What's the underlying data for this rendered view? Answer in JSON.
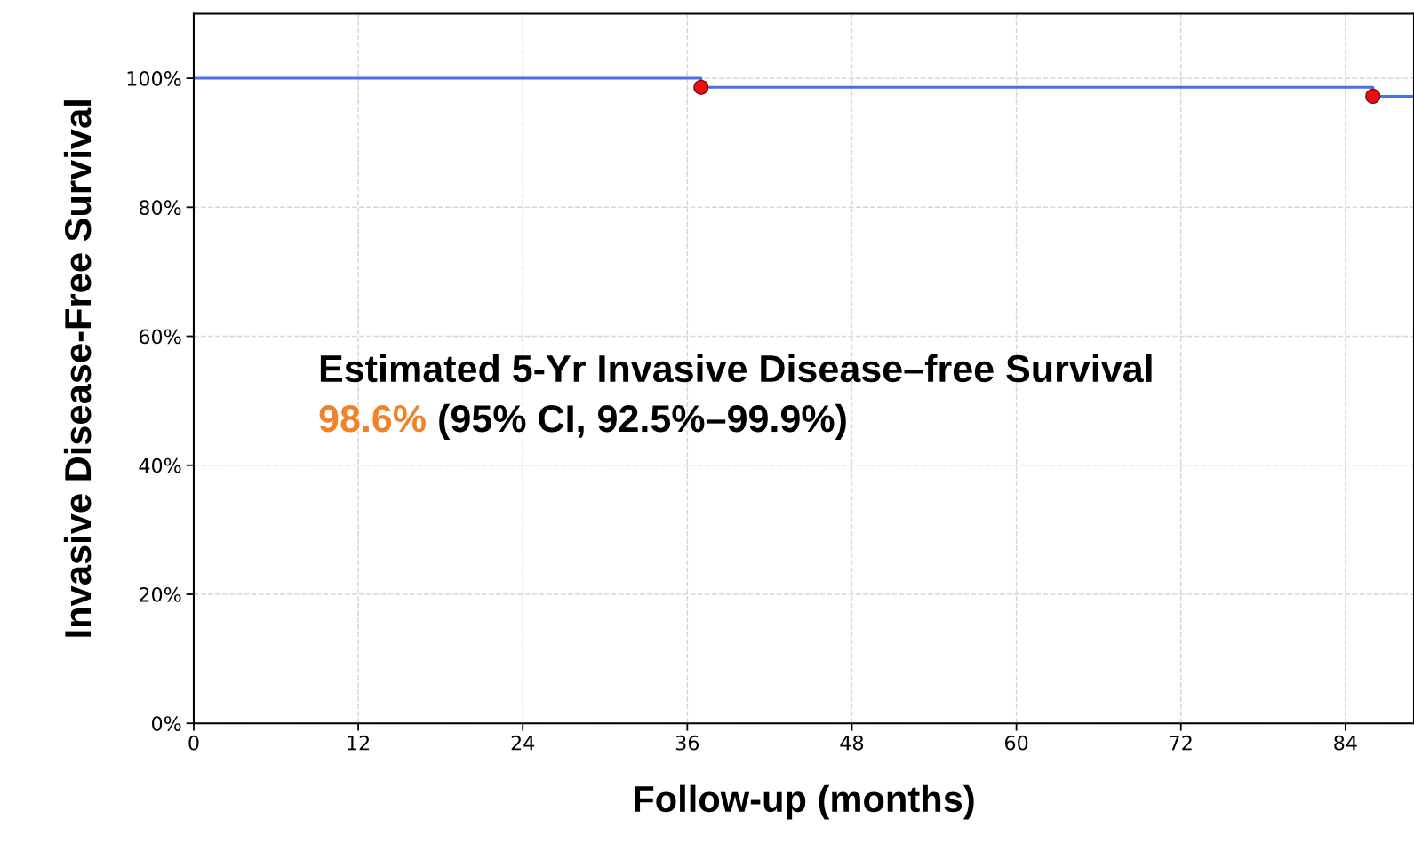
{
  "chart_data": {
    "type": "step",
    "xlabel": "Follow-up (months)",
    "ylabel": "Invasive Disease-Free Survival",
    "series": [
      {
        "color": "#4a6fe0",
        "x": [
          0,
          37,
          86,
          89
        ],
        "values": [
          100,
          98.6,
          97.2,
          97.2
        ],
        "marker": "none"
      },
      {
        "type": "scatter",
        "color": "#e81010",
        "x": [
          37,
          86
        ],
        "values": [
          98.6,
          97.2
        ],
        "marker": "circle"
      }
    ],
    "annotations": [
      "Estimated 5-Yr Invasive Disease–free Survival",
      "98.6%",
      "(95% CI, 92.5%–99.9%)"
    ],
    "xlim": [
      0,
      89
    ],
    "ylim": [
      0,
      110
    ],
    "xticks": [
      0,
      12,
      24,
      36,
      48,
      60,
      72,
      84
    ],
    "yticks": [
      {
        "value": 0,
        "label": "0%"
      },
      {
        "value": 20,
        "label": "20%"
      },
      {
        "value": 40,
        "label": "40%"
      },
      {
        "value": 60,
        "label": "60%"
      },
      {
        "value": 80,
        "label": "80%"
      },
      {
        "value": 100,
        "label": "100%"
      }
    ],
    "grid": true,
    "legend": false
  }
}
